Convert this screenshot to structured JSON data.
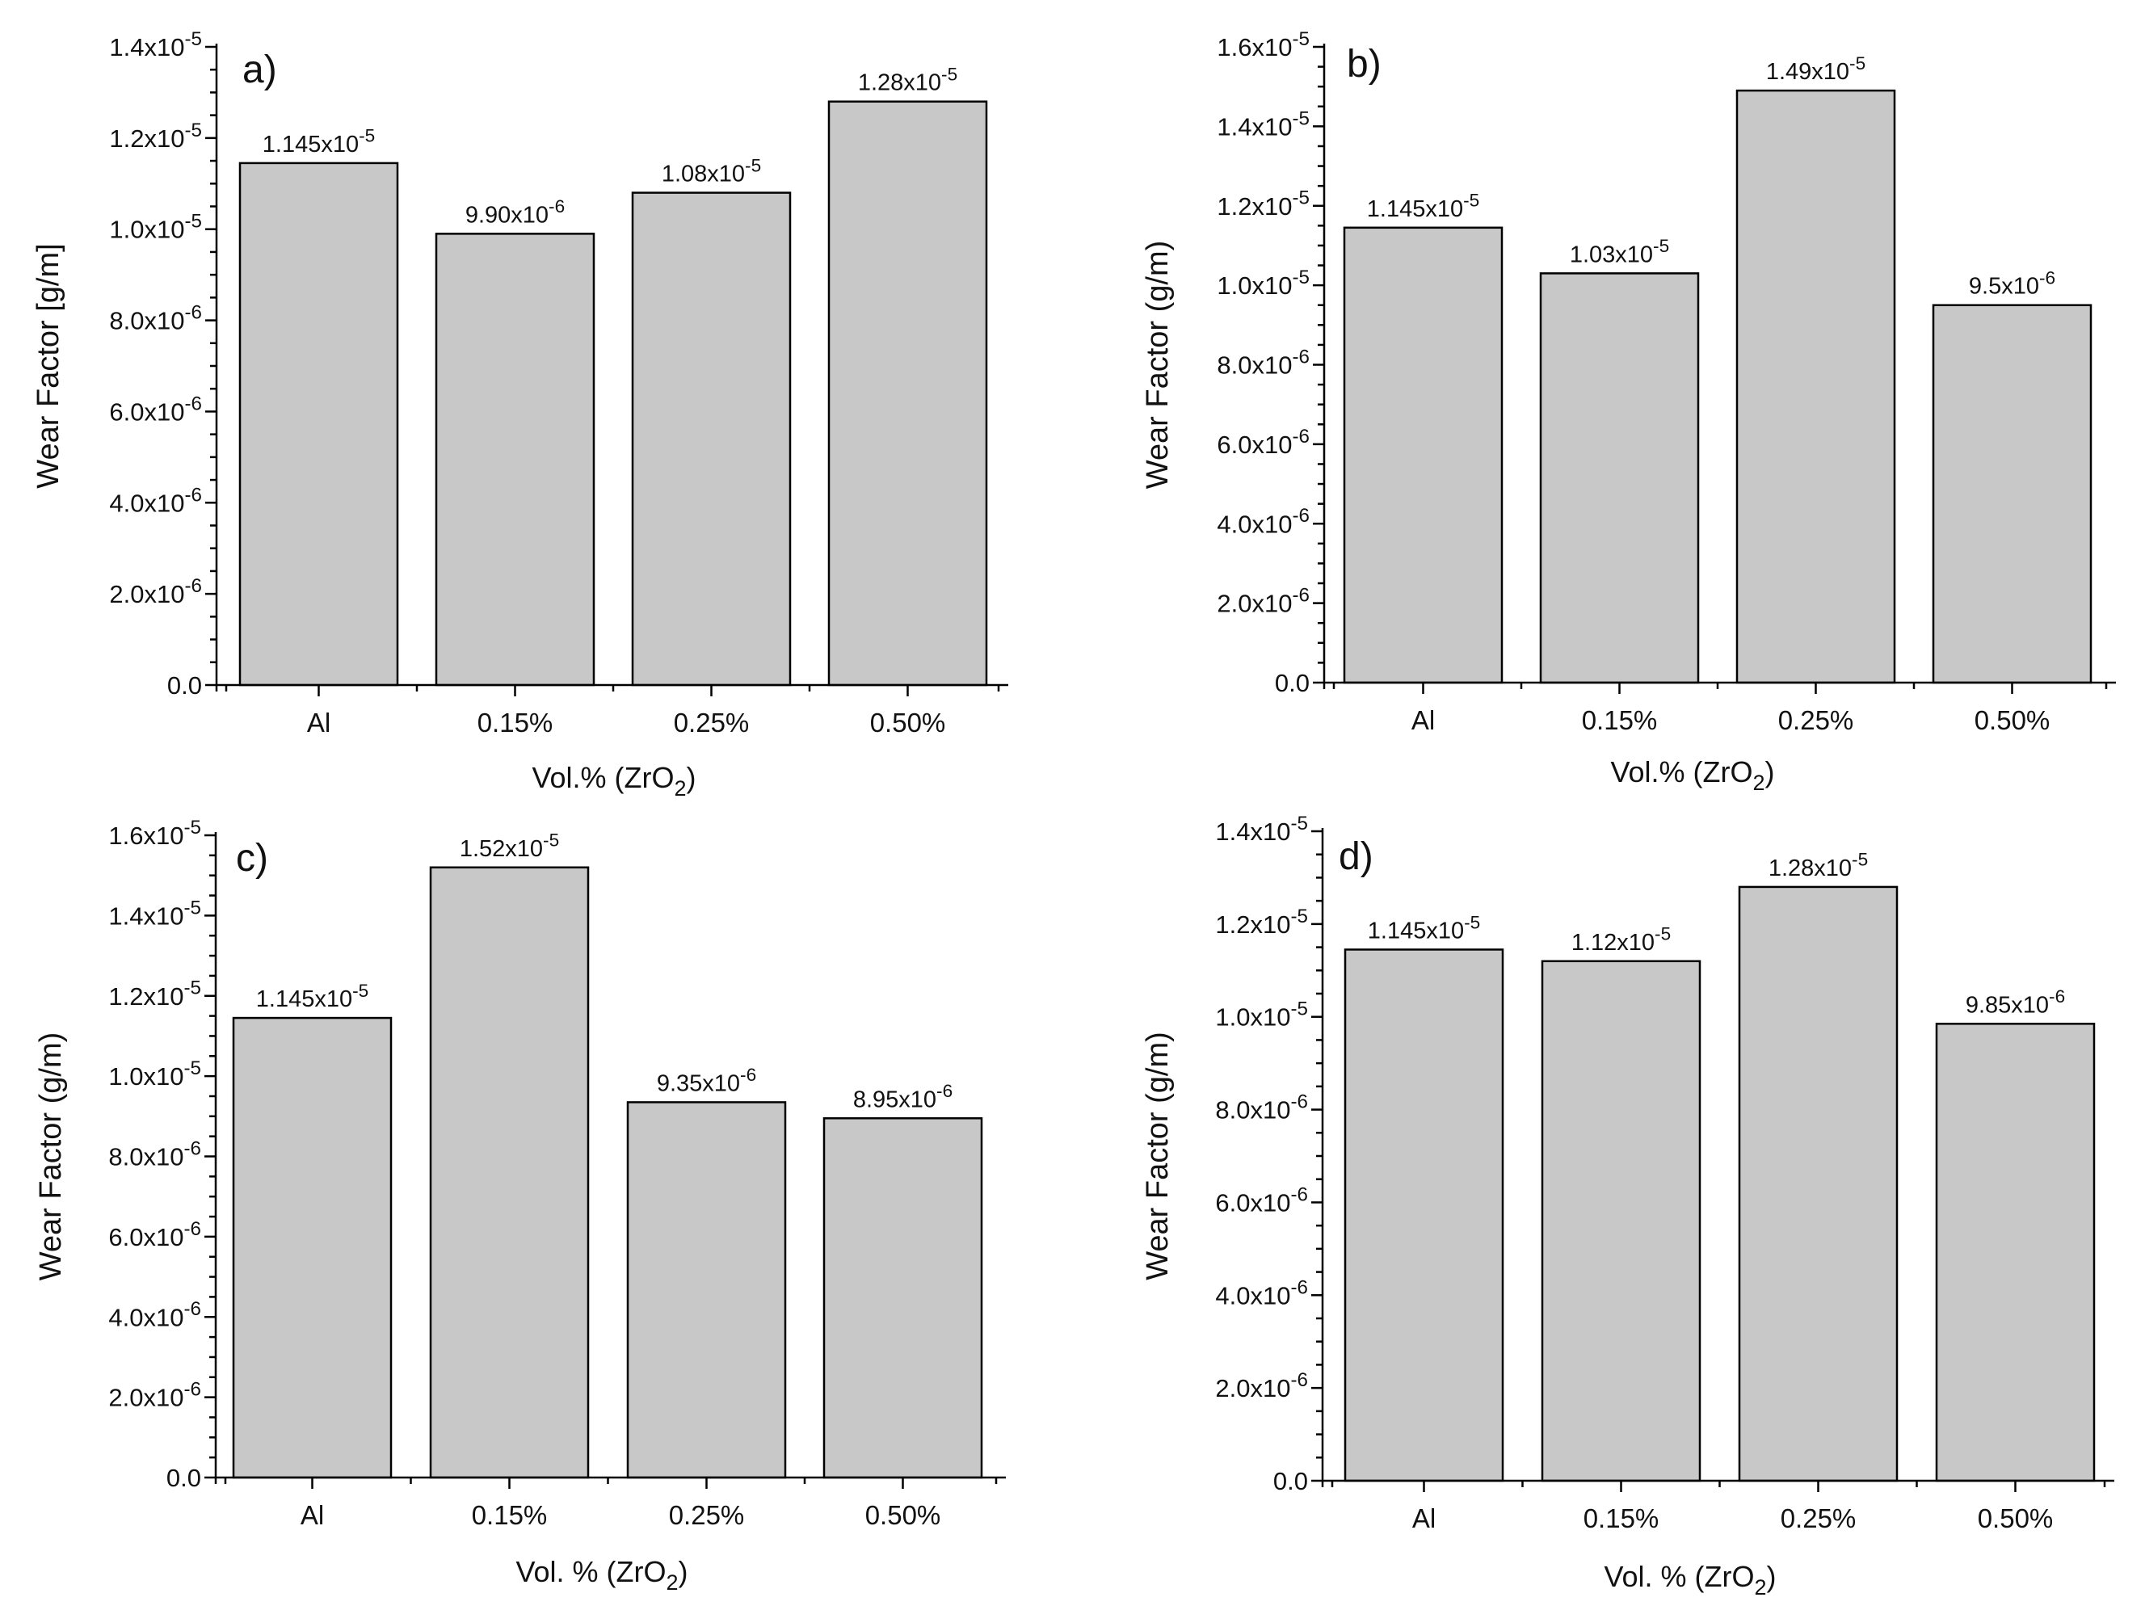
{
  "chart_data": [
    {
      "type": "bar",
      "panel_label": "a)",
      "ylabel": "Wear Factor [g/m]",
      "xlabel_main": "Vol.% (ZrO",
      "xlabel_sub": "2",
      "xlabel_end": ")",
      "categories": [
        "Al",
        "0.15%",
        "0.25%",
        "0.50%"
      ],
      "values": [
        1.145e-05,
        9.9e-06,
        1.08e-05,
        1.28e-05
      ],
      "bar_labels": [
        {
          "mantissa": "1.145x10",
          "exp": "-5"
        },
        {
          "mantissa": "9.90x10",
          "exp": "-6"
        },
        {
          "mantissa": "1.08x10",
          "exp": "-5"
        },
        {
          "mantissa": "1.28x10",
          "exp": "-5"
        }
      ],
      "ylim": [
        0,
        1.4e-05
      ],
      "yticks": [
        {
          "value": 0,
          "mantissa": "0.0",
          "exp": ""
        },
        {
          "value": 2e-06,
          "mantissa": "2.0x10",
          "exp": "-6"
        },
        {
          "value": 4e-06,
          "mantissa": "4.0x10",
          "exp": "-6"
        },
        {
          "value": 6e-06,
          "mantissa": "6.0x10",
          "exp": "-6"
        },
        {
          "value": 8e-06,
          "mantissa": "8.0x10",
          "exp": "-6"
        },
        {
          "value": 1e-05,
          "mantissa": "1.0x10",
          "exp": "-5"
        },
        {
          "value": 1.2e-05,
          "mantissa": "1.2x10",
          "exp": "-5"
        },
        {
          "value": 1.4e-05,
          "mantissa": "1.4x10",
          "exp": "-5"
        }
      ]
    },
    {
      "type": "bar",
      "panel_label": "b)",
      "ylabel": "Wear  Factor (g/m)",
      "xlabel_main": "Vol.% (ZrO",
      "xlabel_sub": "2",
      "xlabel_end": ")",
      "categories": [
        "Al",
        "0.15%",
        "0.25%",
        "0.50%"
      ],
      "values": [
        1.145e-05,
        1.03e-05,
        1.49e-05,
        9.5e-06
      ],
      "bar_labels": [
        {
          "mantissa": "1.145x10",
          "exp": "-5"
        },
        {
          "mantissa": "1.03x10",
          "exp": "-5"
        },
        {
          "mantissa": "1.49x10",
          "exp": "-5"
        },
        {
          "mantissa": "9.5x10",
          "exp": "-6"
        }
      ],
      "ylim": [
        0,
        1.6e-05
      ],
      "yticks": [
        {
          "value": 0,
          "mantissa": "0.0",
          "exp": ""
        },
        {
          "value": 2e-06,
          "mantissa": "2.0x10",
          "exp": "-6"
        },
        {
          "value": 4e-06,
          "mantissa": "4.0x10",
          "exp": "-6"
        },
        {
          "value": 6e-06,
          "mantissa": "6.0x10",
          "exp": "-6"
        },
        {
          "value": 8e-06,
          "mantissa": "8.0x10",
          "exp": "-6"
        },
        {
          "value": 1e-05,
          "mantissa": "1.0x10",
          "exp": "-5"
        },
        {
          "value": 1.2e-05,
          "mantissa": "1.2x10",
          "exp": "-5"
        },
        {
          "value": 1.4e-05,
          "mantissa": "1.4x10",
          "exp": "-5"
        },
        {
          "value": 1.6e-05,
          "mantissa": "1.6x10",
          "exp": "-5"
        }
      ]
    },
    {
      "type": "bar",
      "panel_label": "c)",
      "ylabel": "Wear Factor (g/m)",
      "xlabel_main": "Vol. % (ZrO",
      "xlabel_sub": "2",
      "xlabel_end": ")",
      "categories": [
        "Al",
        "0.15%",
        "0.25%",
        "0.50%"
      ],
      "values": [
        1.145e-05,
        1.52e-05,
        9.35e-06,
        8.95e-06
      ],
      "bar_labels": [
        {
          "mantissa": "1.145x10",
          "exp": "-5"
        },
        {
          "mantissa": "1.52x10",
          "exp": "-5"
        },
        {
          "mantissa": "9.35x10",
          "exp": "-6"
        },
        {
          "mantissa": "8.95x10",
          "exp": "-6"
        }
      ],
      "ylim": [
        0,
        1.6e-05
      ],
      "yticks": [
        {
          "value": 0,
          "mantissa": "0.0",
          "exp": ""
        },
        {
          "value": 2e-06,
          "mantissa": "2.0x10",
          "exp": "-6"
        },
        {
          "value": 4e-06,
          "mantissa": "4.0x10",
          "exp": "-6"
        },
        {
          "value": 6e-06,
          "mantissa": "6.0x10",
          "exp": "-6"
        },
        {
          "value": 8e-06,
          "mantissa": "8.0x10",
          "exp": "-6"
        },
        {
          "value": 1e-05,
          "mantissa": "1.0x10",
          "exp": "-5"
        },
        {
          "value": 1.2e-05,
          "mantissa": "1.2x10",
          "exp": "-5"
        },
        {
          "value": 1.4e-05,
          "mantissa": "1.4x10",
          "exp": "-5"
        },
        {
          "value": 1.6e-05,
          "mantissa": "1.6x10",
          "exp": "-5"
        }
      ]
    },
    {
      "type": "bar",
      "panel_label": "d)",
      "ylabel": "Wear Factor (g/m)",
      "xlabel_main": "Vol. % (ZrO",
      "xlabel_sub": "2",
      "xlabel_end": ")",
      "categories": [
        "Al",
        "0.15%",
        "0.25%",
        "0.50%"
      ],
      "values": [
        1.145e-05,
        1.12e-05,
        1.28e-05,
        9.85e-06
      ],
      "bar_labels": [
        {
          "mantissa": "1.145x10",
          "exp": "-5"
        },
        {
          "mantissa": "1.12x10",
          "exp": "-5"
        },
        {
          "mantissa": "1.28x10",
          "exp": "-5"
        },
        {
          "mantissa": "9.85x10",
          "exp": "-6"
        }
      ],
      "ylim": [
        0,
        1.4e-05
      ],
      "yticks": [
        {
          "value": 0,
          "mantissa": "0.0",
          "exp": ""
        },
        {
          "value": 2e-06,
          "mantissa": "2.0x10",
          "exp": "-6"
        },
        {
          "value": 4e-06,
          "mantissa": "4.0x10",
          "exp": "-6"
        },
        {
          "value": 6e-06,
          "mantissa": "6.0x10",
          "exp": "-6"
        },
        {
          "value": 8e-06,
          "mantissa": "8.0x10",
          "exp": "-6"
        },
        {
          "value": 1e-05,
          "mantissa": "1.0x10",
          "exp": "-5"
        },
        {
          "value": 1.2e-05,
          "mantissa": "1.2x10",
          "exp": "-5"
        },
        {
          "value": 1.4e-05,
          "mantissa": "1.4x10",
          "exp": "-5"
        }
      ]
    }
  ]
}
